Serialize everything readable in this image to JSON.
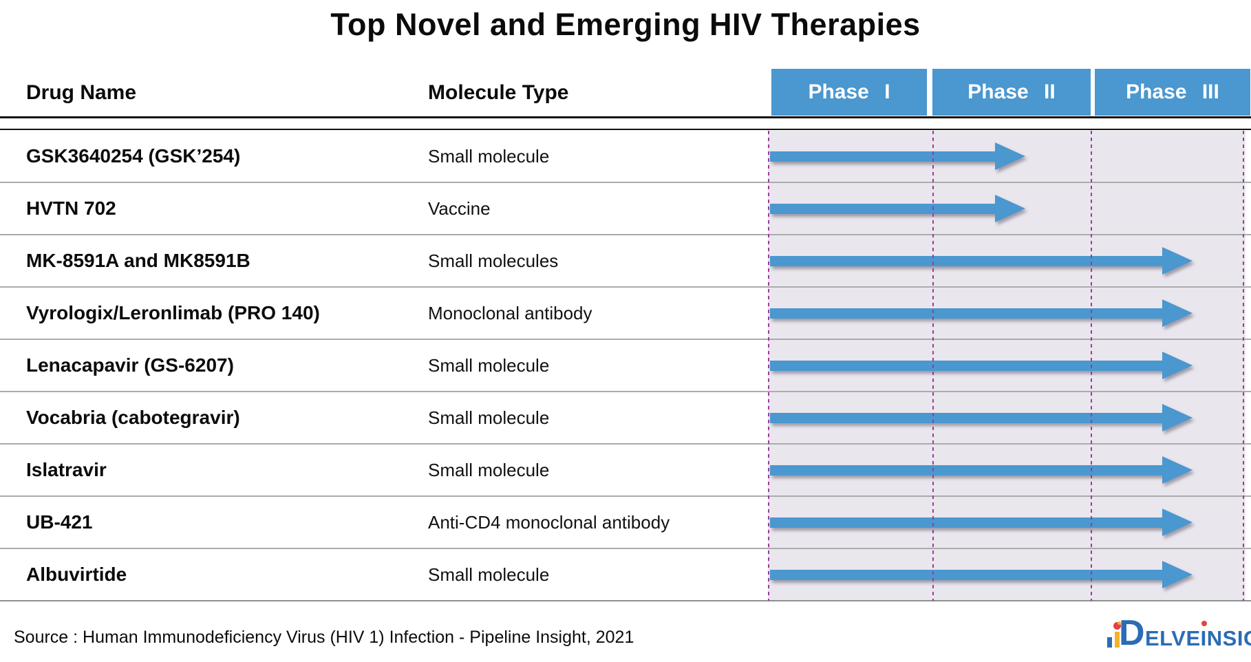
{
  "title": "Top Novel and Emerging HIV Therapies",
  "columns": {
    "drug": "Drug Name",
    "molecule": "Molecule Type"
  },
  "phases": [
    {
      "label": "Phase I"
    },
    {
      "label": "Phase II"
    },
    {
      "label": "Phase III"
    }
  ],
  "chart_data": {
    "type": "table",
    "title": "Top Novel and Emerging HIV Therapies",
    "columns": [
      "Drug Name",
      "Molecule Type",
      "Phase I",
      "Phase II",
      "Phase III"
    ],
    "rows": [
      {
        "drug": "GSK3640254 (GSK’254)",
        "molecule_type": "Small molecule",
        "highest_phase": "Phase II"
      },
      {
        "drug": "HVTN 702",
        "molecule_type": "Vaccine",
        "highest_phase": "Phase II"
      },
      {
        "drug": "MK-8591A and MK8591B",
        "molecule_type": "Small molecules",
        "highest_phase": "Phase III"
      },
      {
        "drug": "Vyrologix/Leronlimab (PRO 140)",
        "molecule_type": "Monoclonal antibody",
        "highest_phase": "Phase III"
      },
      {
        "drug": "Lenacapavir (GS-6207)",
        "molecule_type": "Small molecule",
        "highest_phase": "Phase III"
      },
      {
        "drug": "Vocabria (cabotegravir)",
        "molecule_type": "Small molecule",
        "highest_phase": "Phase III"
      },
      {
        "drug": "Islatravir",
        "molecule_type": "Small molecule",
        "highest_phase": "Phase III"
      },
      {
        "drug": "UB-421",
        "molecule_type": "Anti-CD4 monoclonal antibody",
        "highest_phase": "Phase III"
      },
      {
        "drug": "Albuvirtide",
        "molecule_type": "Small molecule",
        "highest_phase": "Phase III"
      }
    ],
    "legend_position": "top-right-header",
    "grid": "dashed vertical phase boundaries"
  },
  "source_note": "Source : Human Immunodeficiency Virus (HIV 1) Infection - Pipeline Insight, 2021",
  "logo": {
    "d": "D",
    "part1": "ELVE",
    "dotted_i": "I",
    "part2": "NSIGHT"
  },
  "colors": {
    "accent_blue": "#4B97CF",
    "band_bg": "#EAE6EE",
    "dashed_line": "#993D99",
    "logo_blue": "#2B6CB5",
    "logo_yellow": "#F3B229",
    "logo_red": "#E04444"
  }
}
